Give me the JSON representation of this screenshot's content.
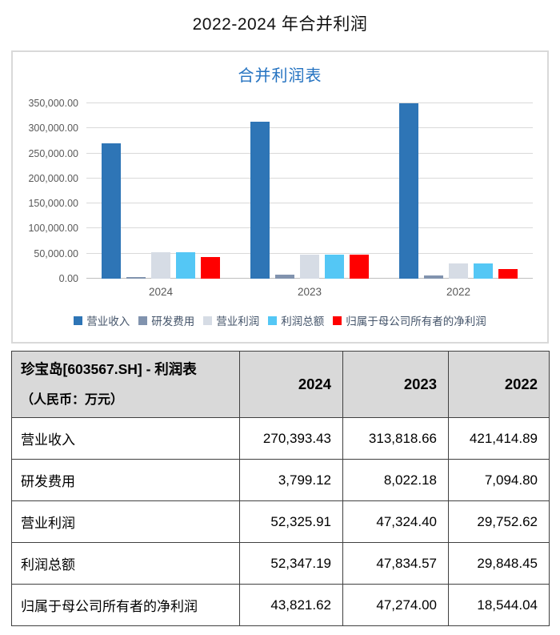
{
  "page_title": "2022-2024 年合并利润",
  "chart_data": {
    "type": "bar",
    "title": "合并利润表",
    "categories": [
      "2024",
      "2023",
      "2022"
    ],
    "series": [
      {
        "name": "营业收入",
        "color": "#2e75b6",
        "values": [
          270393.43,
          313818.66,
          421414.89
        ]
      },
      {
        "name": "研发费用",
        "color": "#8193ae",
        "values": [
          3799.12,
          8022.18,
          7094.8
        ]
      },
      {
        "name": "营业利润",
        "color": "#d6dce5",
        "values": [
          52325.91,
          47324.4,
          29752.62
        ]
      },
      {
        "name": "利润总额",
        "color": "#54c7f5",
        "values": [
          52347.19,
          47834.57,
          29848.45
        ]
      },
      {
        "name": "归属于母公司所有者的净利润",
        "color": "#ff0000",
        "values": [
          43821.62,
          47274.0,
          18544.04
        ]
      }
    ],
    "ylim": [
      0,
      350000
    ],
    "ytick_step": 50000,
    "ytick_labels": [
      "0.00",
      "50,000.00",
      "100,000.00",
      "150,000.00",
      "200,000.00",
      "250,000.00",
      "300,000.00",
      "350,000.00"
    ],
    "grid": true,
    "legend_position": "bottom",
    "bars_clipped_at_ymax": true
  },
  "table": {
    "header": {
      "title_line1": "珍宝岛[603567.SH] - 利润表",
      "title_line2": "（人民币：万元）",
      "columns": [
        "2024",
        "2023",
        "2022"
      ]
    },
    "rows": [
      {
        "label": "营业收入",
        "values": [
          "270,393.43",
          "313,818.66",
          "421,414.89"
        ]
      },
      {
        "label": "研发费用",
        "values": [
          "3,799.12",
          "8,022.18",
          "7,094.80"
        ]
      },
      {
        "label": "营业利润",
        "values": [
          "52,325.91",
          "47,324.40",
          "29,752.62"
        ]
      },
      {
        "label": "利润总额",
        "values": [
          "52,347.19",
          "47,834.57",
          "29,848.45"
        ]
      },
      {
        "label": "归属于母公司所有者的净利润",
        "values": [
          "43,821.62",
          "47,274.00",
          "18,544.04"
        ]
      }
    ]
  },
  "colors": {
    "chart_title": "#2573c1",
    "axis_text": "#595959",
    "legend_text": "#44546a",
    "gridline": "#d9d9d9",
    "card_border": "#d9d9d9",
    "table_border": "#404040",
    "table_header_bg": "#d9d9d9"
  }
}
